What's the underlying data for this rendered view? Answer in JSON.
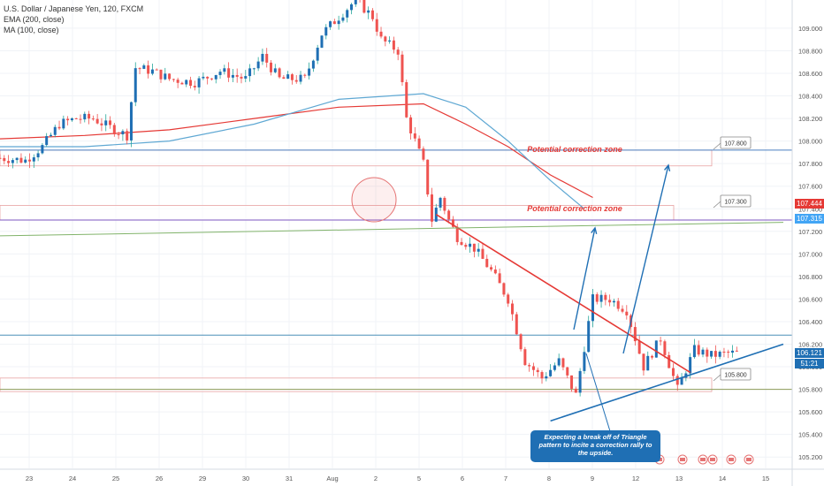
{
  "header": {
    "title": "U.S. Dollar / Japanese Yen, 120, FXCM",
    "indicators": [
      "EMA (200, close)",
      "MA (100, close)"
    ]
  },
  "price_axis": {
    "ticks": [
      "109.000",
      "108.800",
      "108.600",
      "108.400",
      "108.200",
      "108.000",
      "107.800",
      "107.600",
      "107.400",
      "107.200",
      "107.000",
      "106.800",
      "106.600",
      "106.400",
      "106.200",
      "106.000",
      "105.800",
      "105.600",
      "105.400",
      "105.200"
    ],
    "badges": [
      {
        "text": "107.444",
        "value": 107.444,
        "color": "#e53935"
      },
      {
        "text": "107.315",
        "value": 107.315,
        "color": "#42a5f5"
      },
      {
        "text": "106.121",
        "value": 106.121,
        "color": "#1f6fb4"
      },
      {
        "text": "51:21",
        "value": 106.03,
        "color": "#1f6fb4"
      }
    ]
  },
  "time_axis": {
    "ticks": [
      "23",
      "24",
      "25",
      "26",
      "29",
      "30",
      "31",
      "Aug",
      "2",
      "5",
      "6",
      "7",
      "8",
      "9",
      "12",
      "13",
      "14",
      "15"
    ]
  },
  "annotations": {
    "zone_upper_label": "Potential correction zone",
    "zone_lower_label": "Potential correction zone",
    "level_labels": [
      "107.800",
      "107.300",
      "105.800"
    ],
    "callout_text": "Expecting a break off of Triangle pattern to incite a correction rally to the upside."
  },
  "chart_data": {
    "type": "candlestick",
    "symbol": "USDJPY",
    "ylim": [
      105.1,
      109.25
    ],
    "xlim_index": [
      0,
      185
    ],
    "ohlc_close_path": [
      [
        0,
        107.85
      ],
      [
        6,
        107.83
      ],
      [
        10,
        107.95
      ],
      [
        14,
        108.15
      ],
      [
        18,
        108.2
      ],
      [
        22,
        108.2
      ],
      [
        26,
        108.12
      ],
      [
        30,
        108.05
      ],
      [
        32,
        108.65
      ],
      [
        36,
        108.62
      ],
      [
        40,
        108.55
      ],
      [
        46,
        108.52
      ],
      [
        48,
        108.55
      ],
      [
        52,
        108.62
      ],
      [
        58,
        108.55
      ],
      [
        62,
        108.75
      ],
      [
        66,
        108.55
      ],
      [
        72,
        108.55
      ],
      [
        76,
        108.95
      ],
      [
        80,
        109.1
      ],
      [
        84,
        109.25
      ],
      [
        88,
        109.1
      ],
      [
        90,
        108.9
      ],
      [
        94,
        108.8
      ],
      [
        96,
        108.2
      ],
      [
        98,
        108.0
      ],
      [
        100,
        107.8
      ],
      [
        102,
        107.3
      ],
      [
        104,
        107.5
      ],
      [
        106,
        107.3
      ],
      [
        108,
        107.15
      ],
      [
        112,
        107.05
      ],
      [
        116,
        106.85
      ],
      [
        120,
        106.6
      ],
      [
        124,
        106.05
      ],
      [
        128,
        105.9
      ],
      [
        132,
        106.05
      ],
      [
        136,
        105.75
      ],
      [
        140,
        106.6
      ],
      [
        144,
        106.6
      ],
      [
        148,
        106.5
      ],
      [
        152,
        106.0
      ],
      [
        156,
        106.25
      ],
      [
        160,
        105.8
      ],
      [
        164,
        106.15
      ],
      [
        168,
        106.1
      ],
      [
        172,
        106.12
      ],
      [
        174,
        106.12
      ]
    ],
    "ema_200": [
      [
        0,
        108.02
      ],
      [
        20,
        108.05
      ],
      [
        40,
        108.1
      ],
      [
        60,
        108.2
      ],
      [
        80,
        108.3
      ],
      [
        100,
        108.33
      ],
      [
        110,
        108.15
      ],
      [
        120,
        107.95
      ],
      [
        130,
        107.7
      ],
      [
        140,
        107.5
      ]
    ],
    "ma_100": [
      [
        0,
        107.95
      ],
      [
        20,
        107.95
      ],
      [
        40,
        108.0
      ],
      [
        60,
        108.15
      ],
      [
        80,
        108.37
      ],
      [
        100,
        108.42
      ],
      [
        110,
        108.3
      ],
      [
        120,
        108.0
      ],
      [
        130,
        107.65
      ],
      [
        138,
        107.4
      ]
    ],
    "zones": [
      {
        "top": 107.92,
        "bottom": 107.78
      },
      {
        "top": 107.43,
        "bottom": 107.3
      }
    ],
    "levels": [
      {
        "value": 107.92,
        "color": "#4a7fc1"
      },
      {
        "value": 107.3,
        "color": "#7e57c2"
      },
      {
        "value": 106.28,
        "color": "#4a90b8"
      },
      {
        "value": 105.8,
        "color": "#8d9b57"
      }
    ],
    "trendlines": [
      {
        "name": "resistance",
        "from": [
          103,
          107.35
        ],
        "to": [
          163,
          105.95
        ],
        "color": "#e53935"
      },
      {
        "name": "support",
        "from": [
          130,
          105.52
        ],
        "to": [
          185,
          106.2
        ],
        "color": "#1f6fb4"
      },
      {
        "name": "long-channel",
        "from": [
          0,
          107.16
        ],
        "to": [
          185,
          107.28
        ],
        "color": "#81b36a"
      }
    ],
    "grid": true,
    "legend": "top-left"
  }
}
